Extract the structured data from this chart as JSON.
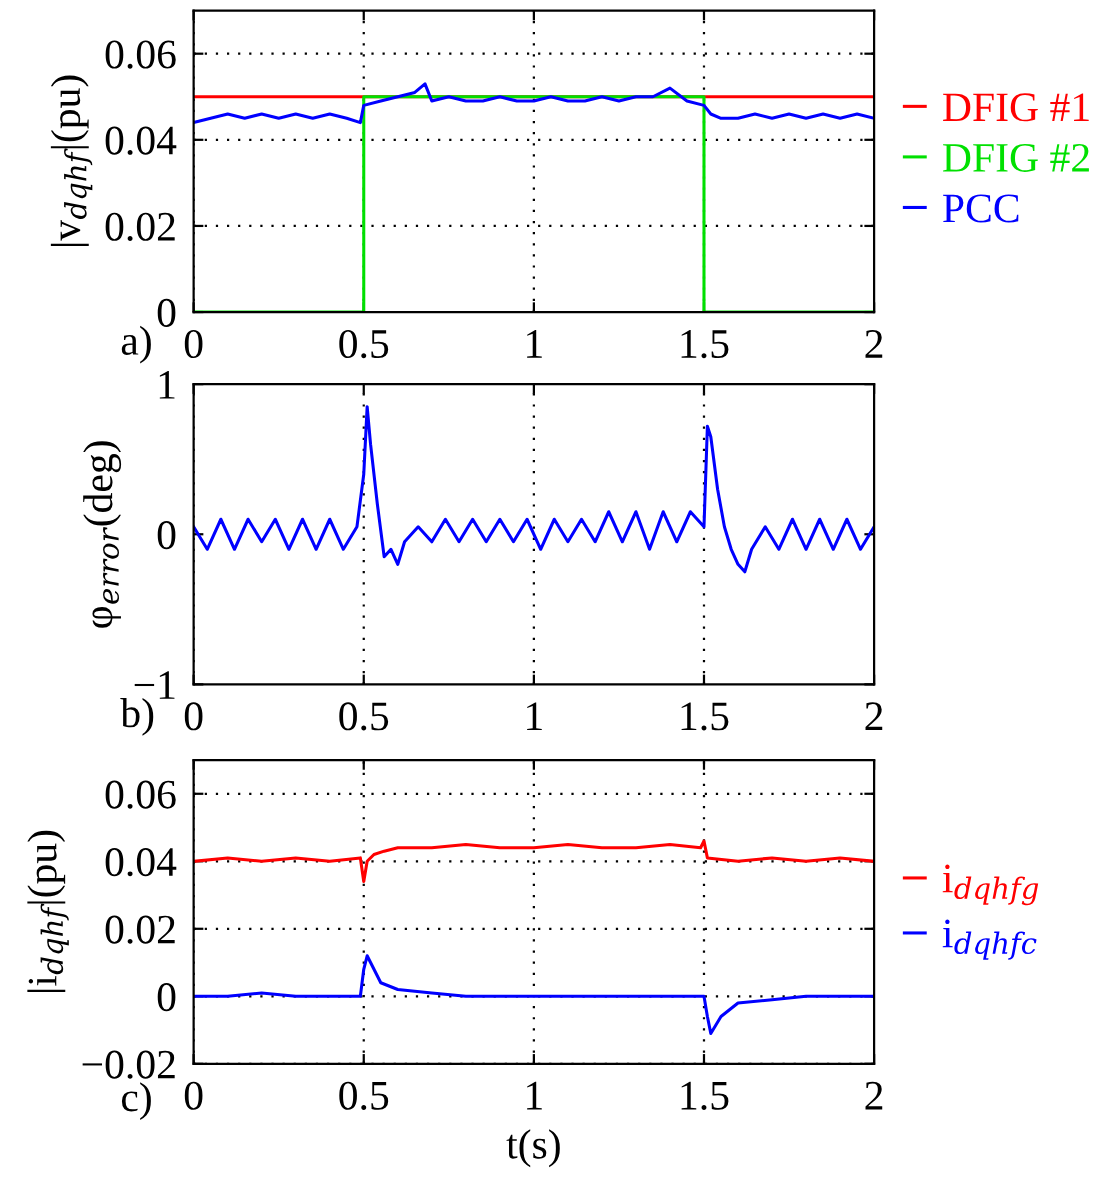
{
  "chart_data": [
    {
      "type": "line",
      "ylabel": "|v$_{dqhf}$|(pu)",
      "annotations": [
        "a)"
      ],
      "xlim": [
        0,
        2
      ],
      "xticks": [
        0,
        0.5,
        1,
        1.5,
        2
      ],
      "ylim": [
        0,
        0.07
      ],
      "yticks": [
        0,
        0.02,
        0.04,
        0.06
      ],
      "grid": true,
      "legend": "right",
      "series": [
        {
          "name": "DFIG #1",
          "color": "#ff0000",
          "x": [
            0,
            2
          ],
          "values": [
            0.05,
            0.05
          ]
        },
        {
          "name": "DFIG #2",
          "color": "#00e000",
          "x": [
            0,
            0.5,
            0.5,
            1.5,
            1.5,
            2
          ],
          "values": [
            0,
            0,
            0.05,
            0.05,
            0,
            0
          ]
        },
        {
          "name": "PCC",
          "color": "#0000ff",
          "x": [
            0,
            0.05,
            0.1,
            0.15,
            0.2,
            0.25,
            0.3,
            0.35,
            0.4,
            0.45,
            0.49,
            0.5,
            0.55,
            0.6,
            0.65,
            0.68,
            0.7,
            0.75,
            0.8,
            0.85,
            0.9,
            0.95,
            1.0,
            1.05,
            1.1,
            1.15,
            1.2,
            1.25,
            1.3,
            1.35,
            1.4,
            1.45,
            1.5,
            1.52,
            1.55,
            1.6,
            1.65,
            1.7,
            1.75,
            1.8,
            1.85,
            1.9,
            1.95,
            2.0
          ],
          "values": [
            0.044,
            0.045,
            0.046,
            0.045,
            0.046,
            0.045,
            0.046,
            0.045,
            0.046,
            0.045,
            0.044,
            0.048,
            0.049,
            0.05,
            0.051,
            0.053,
            0.049,
            0.05,
            0.049,
            0.049,
            0.05,
            0.049,
            0.049,
            0.05,
            0.049,
            0.049,
            0.05,
            0.049,
            0.05,
            0.05,
            0.052,
            0.049,
            0.048,
            0.046,
            0.045,
            0.045,
            0.046,
            0.045,
            0.046,
            0.045,
            0.046,
            0.045,
            0.046,
            0.045
          ]
        }
      ]
    },
    {
      "type": "line",
      "ylabel": "φ$_{error}$(deg)",
      "annotations": [
        "b)"
      ],
      "xlim": [
        0,
        2
      ],
      "xticks": [
        0,
        0.5,
        1,
        1.5,
        2
      ],
      "ylim": [
        -1,
        1
      ],
      "yticks": [
        {
          "value": -1,
          "label": "−1"
        },
        0,
        1
      ],
      "grid": "x",
      "series": [
        {
          "color": "#0000ff",
          "x": [
            0,
            0.04,
            0.08,
            0.12,
            0.16,
            0.2,
            0.24,
            0.28,
            0.32,
            0.36,
            0.4,
            0.44,
            0.48,
            0.5,
            0.51,
            0.52,
            0.54,
            0.56,
            0.58,
            0.6,
            0.62,
            0.66,
            0.7,
            0.74,
            0.78,
            0.82,
            0.86,
            0.9,
            0.94,
            0.98,
            1.02,
            1.06,
            1.1,
            1.14,
            1.18,
            1.22,
            1.26,
            1.3,
            1.34,
            1.38,
            1.42,
            1.46,
            1.5,
            1.51,
            1.52,
            1.54,
            1.56,
            1.58,
            1.6,
            1.62,
            1.64,
            1.68,
            1.72,
            1.76,
            1.8,
            1.84,
            1.88,
            1.92,
            1.96,
            2.0
          ],
          "values": [
            0.05,
            -0.1,
            0.1,
            -0.1,
            0.1,
            -0.05,
            0.1,
            -0.1,
            0.1,
            -0.1,
            0.1,
            -0.1,
            0.05,
            0.4,
            0.85,
            0.6,
            0.2,
            -0.15,
            -0.1,
            -0.2,
            -0.05,
            0.05,
            -0.05,
            0.1,
            -0.05,
            0.1,
            -0.05,
            0.1,
            -0.05,
            0.1,
            -0.1,
            0.1,
            -0.05,
            0.1,
            -0.05,
            0.15,
            -0.05,
            0.15,
            -0.1,
            0.15,
            -0.05,
            0.15,
            0.05,
            0.72,
            0.65,
            0.3,
            0.05,
            -0.1,
            -0.2,
            -0.25,
            -0.1,
            0.05,
            -0.1,
            0.1,
            -0.1,
            0.1,
            -0.1,
            0.1,
            -0.1,
            0.05
          ]
        }
      ]
    },
    {
      "type": "line",
      "ylabel": "|i$_{dqhf}$|(pu)",
      "xlabel": "t(s)",
      "annotations": [
        "c)"
      ],
      "xlim": [
        0,
        2
      ],
      "xticks": [
        0,
        0.5,
        1,
        1.5,
        2
      ],
      "ylim": [
        -0.02,
        0.07
      ],
      "yticks": [
        {
          "value": -0.02,
          "label": "−0.02"
        },
        0,
        0.02,
        0.04,
        0.06
      ],
      "grid": true,
      "legend": "right",
      "series": [
        {
          "name": "i$_{dqhfg}$",
          "color": "#ff0000",
          "x": [
            0,
            0.1,
            0.2,
            0.3,
            0.4,
            0.49,
            0.5,
            0.51,
            0.53,
            0.56,
            0.6,
            0.7,
            0.8,
            0.9,
            1.0,
            1.1,
            1.2,
            1.3,
            1.4,
            1.49,
            1.5,
            1.51,
            1.6,
            1.7,
            1.8,
            1.9,
            2.0
          ],
          "values": [
            0.04,
            0.041,
            0.04,
            0.041,
            0.04,
            0.041,
            0.034,
            0.04,
            0.042,
            0.043,
            0.044,
            0.044,
            0.045,
            0.044,
            0.044,
            0.045,
            0.044,
            0.044,
            0.045,
            0.044,
            0.046,
            0.041,
            0.04,
            0.041,
            0.04,
            0.041,
            0.04
          ]
        },
        {
          "name": "i$_{dqhfc}$",
          "color": "#0000ff",
          "x": [
            0,
            0.1,
            0.2,
            0.3,
            0.4,
            0.49,
            0.5,
            0.51,
            0.52,
            0.55,
            0.6,
            0.7,
            0.8,
            0.9,
            1.0,
            1.1,
            1.2,
            1.3,
            1.4,
            1.5,
            1.51,
            1.52,
            1.55,
            1.6,
            1.7,
            1.8,
            1.9,
            2.0
          ],
          "values": [
            0,
            0,
            0.001,
            0,
            0,
            0,
            0.008,
            0.012,
            0.01,
            0.004,
            0.002,
            0.001,
            0,
            0,
            0,
            0,
            0,
            0,
            0,
            0,
            -0.006,
            -0.011,
            -0.006,
            -0.002,
            -0.001,
            0,
            0,
            0
          ]
        }
      ]
    }
  ]
}
